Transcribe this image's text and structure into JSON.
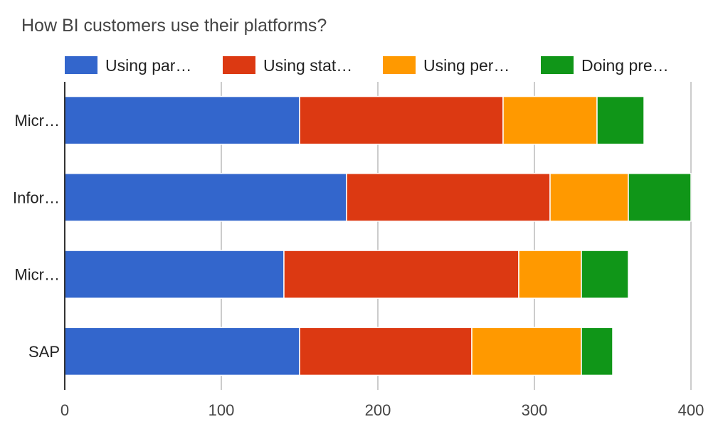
{
  "chart_data": {
    "type": "bar",
    "orientation": "horizontal",
    "stacked": true,
    "title": "How BI customers use their platforms?",
    "categories": [
      "Micr…",
      "Infor…",
      "Micr…",
      "SAP"
    ],
    "series": [
      {
        "name": "Using par…",
        "color": "#3366cc",
        "values": [
          150,
          180,
          140,
          150
        ]
      },
      {
        "name": "Using stat…",
        "color": "#dc3912",
        "values": [
          130,
          130,
          150,
          110
        ]
      },
      {
        "name": "Using per…",
        "color": "#ff9900",
        "values": [
          60,
          50,
          40,
          70
        ]
      },
      {
        "name": "Doing pre…",
        "color": "#109618",
        "values": [
          30,
          40,
          30,
          20
        ]
      }
    ],
    "xlim": [
      0,
      400
    ],
    "x_ticks": [
      0,
      100,
      200,
      300,
      400
    ],
    "x_tick_labels": [
      "0",
      "100",
      "200",
      "300",
      "400"
    ],
    "grid": true,
    "legend_position": "top"
  }
}
